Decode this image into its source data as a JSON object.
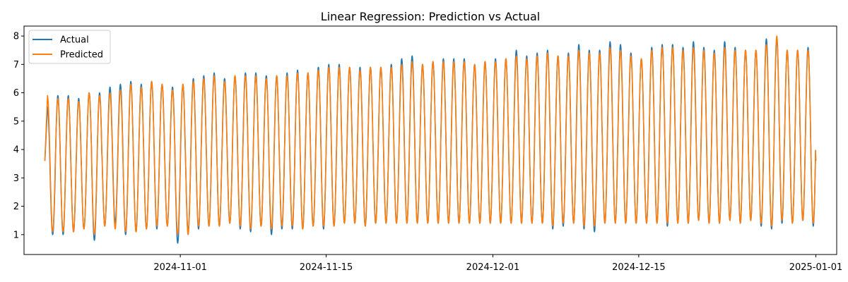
{
  "chart_data": {
    "type": "line",
    "title": "Linear Regression: Prediction vs Actual",
    "xlabel": "",
    "ylabel": "",
    "x_range": [
      "2024-10-19",
      "2025-01-01"
    ],
    "xlim": [
      "2024-10-17",
      "2025-01-03"
    ],
    "ylim": [
      0.3,
      8.35
    ],
    "x_ticks": [
      "2024-11-01",
      "2024-11-15",
      "2024-12-01",
      "2024-12-15",
      "2025-01-01"
    ],
    "y_ticks": [
      1,
      2,
      3,
      4,
      5,
      6,
      7,
      8
    ],
    "grid": false,
    "legend": "upper-left",
    "cycles_per_day": 1,
    "series": [
      {
        "name": "Actual",
        "color": "#1f77b4",
        "daily_peaks": [
          5.5,
          5.9,
          5.9,
          5.8,
          6.0,
          6.0,
          6.2,
          6.3,
          6.4,
          6.3,
          6.4,
          6.3,
          6.2,
          6.3,
          6.5,
          6.6,
          6.7,
          6.5,
          6.6,
          6.7,
          6.7,
          6.6,
          6.6,
          6.7,
          6.8,
          6.7,
          6.9,
          7.0,
          7.0,
          6.9,
          6.9,
          6.9,
          6.9,
          7.0,
          7.2,
          7.3,
          7.0,
          7.1,
          7.2,
          7.2,
          7.2,
          7.0,
          7.1,
          7.2,
          7.2,
          7.5,
          7.3,
          7.4,
          7.5,
          7.3,
          7.4,
          7.7,
          7.5,
          7.5,
          7.8,
          7.7,
          7.4,
          7.2,
          7.6,
          7.7,
          7.7,
          7.6,
          7.8,
          7.6,
          7.5,
          7.8,
          7.6,
          7.5,
          7.5,
          7.9,
          7.9,
          7.5,
          7.5,
          7.6,
          7.6,
          7.7,
          7.7,
          7.6,
          7.7,
          7.7,
          7.7
        ],
        "daily_troughs": [
          1.1,
          1.0,
          1.0,
          1.1,
          1.2,
          0.8,
          1.3,
          1.4,
          1.0,
          1.1,
          1.2,
          1.2,
          1.3,
          0.7,
          1.1,
          1.2,
          1.3,
          1.3,
          1.4,
          1.2,
          1.1,
          1.3,
          1.0,
          1.2,
          1.2,
          1.2,
          1.3,
          1.2,
          1.3,
          1.4,
          1.4,
          1.3,
          1.4,
          1.4,
          1.4,
          1.4,
          1.4,
          1.4,
          1.4,
          1.4,
          1.4,
          1.4,
          1.4,
          1.4,
          1.4,
          1.4,
          1.4,
          1.4,
          1.4,
          1.2,
          1.3,
          1.4,
          1.2,
          1.1,
          1.4,
          1.4,
          1.4,
          1.4,
          1.4,
          1.4,
          1.3,
          1.4,
          1.4,
          1.5,
          1.4,
          1.4,
          1.5,
          1.4,
          1.5,
          1.3,
          1.2,
          1.4,
          1.4,
          1.5,
          1.3,
          1.5,
          1.2,
          1.5,
          1.5,
          1.4,
          1.5
        ]
      },
      {
        "name": "Predicted",
        "color": "#ff7f0e",
        "daily_peaks": [
          5.9,
          5.8,
          5.8,
          5.7,
          6.0,
          5.9,
          6.0,
          6.1,
          6.3,
          6.2,
          6.4,
          6.3,
          6.1,
          6.3,
          6.4,
          6.5,
          6.6,
          6.4,
          6.6,
          6.6,
          6.6,
          6.5,
          6.6,
          6.6,
          6.7,
          6.7,
          6.8,
          6.9,
          6.9,
          6.9,
          6.8,
          6.9,
          6.9,
          6.9,
          7.0,
          7.1,
          7.0,
          7.1,
          7.1,
          7.1,
          7.1,
          7.0,
          7.1,
          7.1,
          7.2,
          7.3,
          7.2,
          7.3,
          7.4,
          7.3,
          7.3,
          7.5,
          7.4,
          7.4,
          7.6,
          7.5,
          7.3,
          7.2,
          7.5,
          7.6,
          7.6,
          7.5,
          7.6,
          7.5,
          7.4,
          7.6,
          7.5,
          7.5,
          7.5,
          7.7,
          8.0,
          7.5,
          7.5,
          7.5,
          7.6,
          7.6,
          7.6,
          7.6,
          7.6,
          7.6,
          7.6
        ],
        "daily_troughs": [
          1.0,
          1.1,
          1.1,
          1.1,
          1.2,
          1.0,
          1.3,
          1.2,
          1.1,
          1.1,
          1.2,
          1.3,
          1.3,
          1.0,
          1.0,
          1.3,
          1.3,
          1.3,
          1.4,
          1.3,
          1.2,
          1.3,
          1.2,
          1.3,
          1.3,
          1.2,
          1.3,
          1.3,
          1.3,
          1.4,
          1.4,
          1.3,
          1.4,
          1.4,
          1.4,
          1.4,
          1.4,
          1.4,
          1.4,
          1.4,
          1.4,
          1.4,
          1.4,
          1.4,
          1.4,
          1.4,
          1.4,
          1.4,
          1.4,
          1.3,
          1.4,
          1.4,
          1.3,
          1.3,
          1.4,
          1.4,
          1.4,
          1.4,
          1.4,
          1.4,
          1.4,
          1.4,
          1.4,
          1.5,
          1.4,
          1.4,
          1.5,
          1.4,
          1.5,
          1.4,
          1.3,
          1.5,
          1.4,
          1.5,
          1.4,
          1.5,
          1.4,
          1.5,
          1.5,
          1.5,
          1.5
        ]
      }
    ],
    "start_value": 3.6,
    "end_value": 3.6
  }
}
